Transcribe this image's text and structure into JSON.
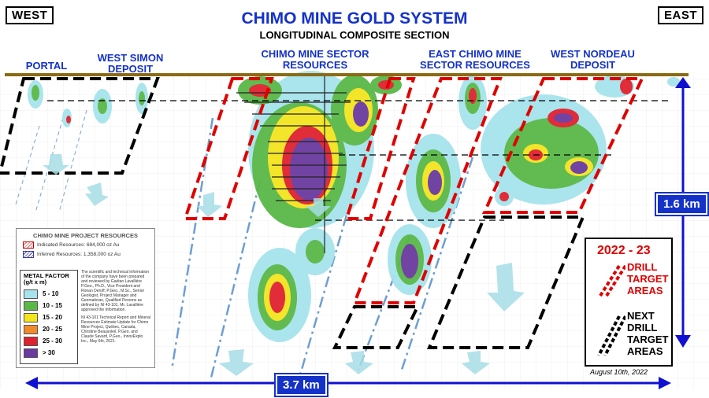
{
  "header": {
    "west_label": "WEST",
    "east_label": "EAST",
    "title": "CHIMO MINE GOLD SYSTEM",
    "subtitle": "LONGITUDINAL COMPOSITE SECTION"
  },
  "zones": {
    "portal": "PORTAL",
    "west_simon": "WEST SIMON DEPOSIT",
    "chimo_sector": "CHIMO MINE SECTOR RESOURCES",
    "east_chimo": "EAST CHIMO MINE SECTOR RESOURCES",
    "west_nordeau": "WEST NORDEAU DEPOSIT"
  },
  "scale": {
    "vertical": "1.6 km",
    "horizontal": "3.7 km"
  },
  "legend": {
    "title": "CHIMO MINE PROJECT RESOURCES",
    "indicated": "Indicated Resources: 684,000 oz Au",
    "inferred": "Inferred Resources: 1,358,000 oz Au",
    "metal_factor_title": "METAL FACTOR (g/t x m)",
    "metal_factor_items": [
      {
        "label": "5 - 10",
        "color": "#a6e3ec"
      },
      {
        "label": "10 - 15",
        "color": "#59b847"
      },
      {
        "label": "15 - 20",
        "color": "#f3e41f"
      },
      {
        "label": "20 - 25",
        "color": "#f08a2b"
      },
      {
        "label": "25 - 30",
        "color": "#e0212f"
      },
      {
        "label": "> 30",
        "color": "#6a3aa0"
      }
    ],
    "note_1": "The scientific and technical information of the company have been prepared and reviewed by Gaétan Lavallière P.Geo., Ph.D., Vice President and Ronan Deroff, P.Geo., M.Sc., Senior Geologist, Project Manager and Geomatician, Qualified Persons as defined by NI 43-101. Mr. Lavallière approved the information.",
    "note_2": "NI 43-101 Technical Report and Mineral Resources Estimate Update for Chimo Mine Project, Québec, Canada, Christine Beausoleil, P.Geo. and Claude Savard, P.Geo., InnovExplo Inc., May 6th, 2021."
  },
  "drill_legend": {
    "year": "2022 - 23",
    "red_text": [
      "DRILL",
      "TARGET",
      "AREAS"
    ],
    "black_text": [
      "NEXT",
      "DRILL",
      "TARGET",
      "AREAS"
    ]
  },
  "date": "August 10th, 2022",
  "colors": {
    "title_blue": "#1432c8",
    "target_red": "#e00000",
    "surface": "#8b6a14",
    "purple": "#6a3aa0"
  }
}
